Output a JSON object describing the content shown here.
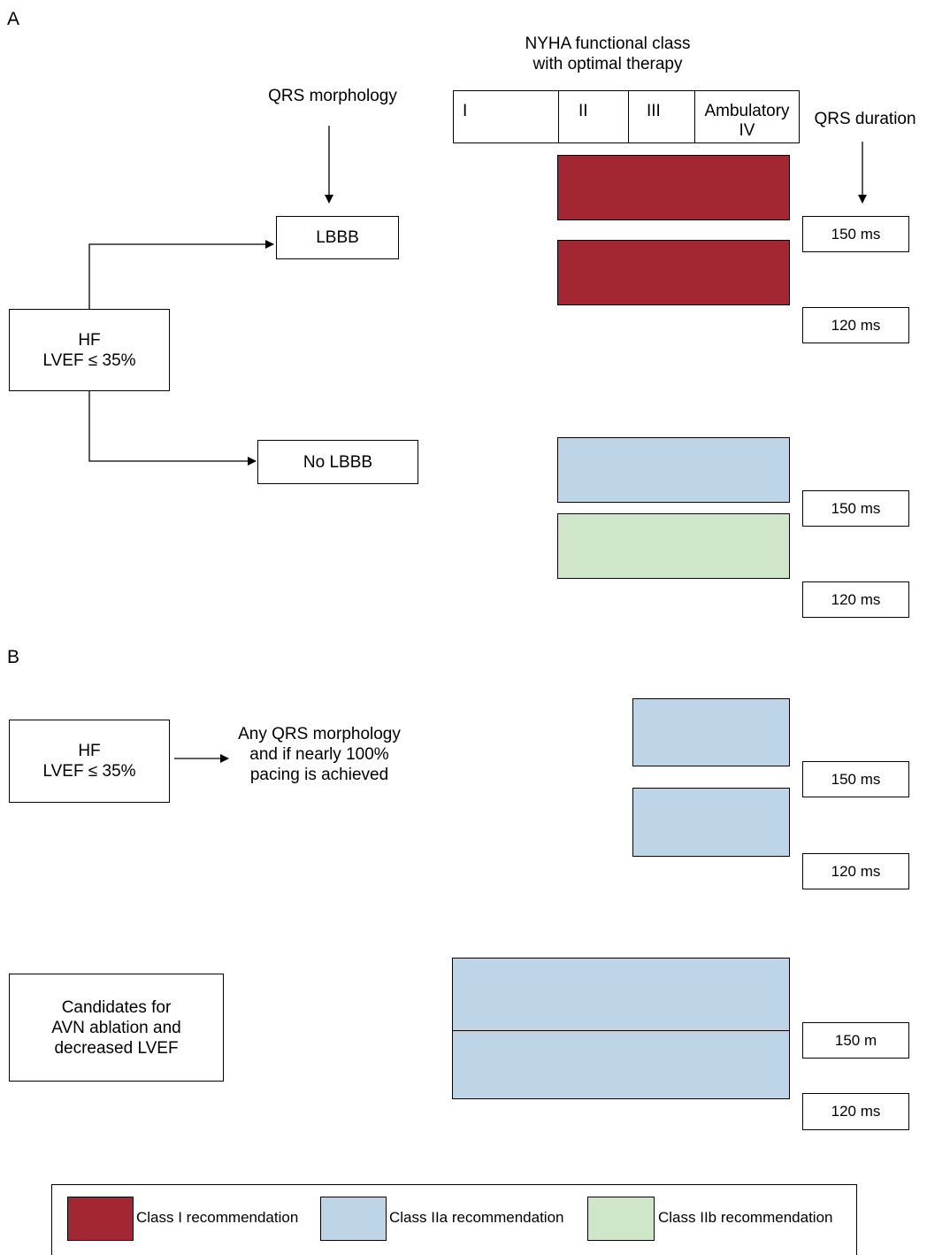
{
  "panel_a": {
    "letter": "A",
    "nyha_title": [
      "NYHA functional class",
      "with optimal therapy"
    ],
    "nyha_classes": [
      "I",
      "II",
      "III",
      "Ambulatory\nIV"
    ],
    "qrs_morphology": "QRS morphology",
    "qrs_duration": "QRS duration",
    "hf_box": [
      "HF",
      "LVEF ≤ 35%"
    ],
    "lbbb": "LBBB",
    "no_lbbb": "No LBBB",
    "durations": [
      "150 ms",
      "120 ms",
      "150 ms",
      "120 ms"
    ]
  },
  "panel_b": {
    "letter": "B",
    "hf_box": [
      "HF",
      "LVEF ≤ 35%"
    ],
    "pacing_text": [
      "Any QRS morphology",
      "and if nearly 100%",
      "pacing is achieved"
    ],
    "avn_box": [
      "Candidates for",
      "AVN ablation and",
      "decreased LVEF"
    ],
    "durations": [
      "150 ms",
      "120 ms",
      "150 m",
      "120 ms"
    ]
  },
  "legend": {
    "items": [
      {
        "label": "Class I recommendation",
        "color": "#a32733"
      },
      {
        "label": "Class IIa recommendation",
        "color": "#bed4e7"
      },
      {
        "label": "Class IIb recommendation",
        "color": "#cfe7c8"
      }
    ]
  },
  "colors": {
    "class_i": "#a32733",
    "class_iia": "#bed4e7",
    "class_iib": "#cfe7c8"
  }
}
